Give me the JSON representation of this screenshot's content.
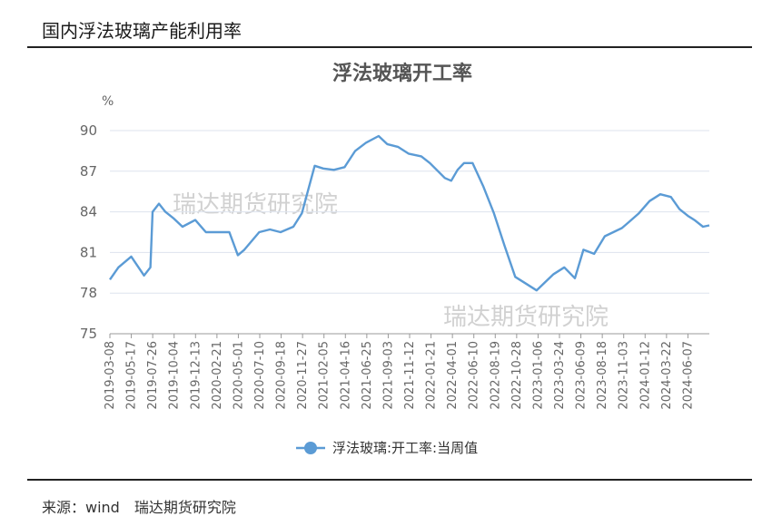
{
  "page": {
    "title": "国内浮法玻璃产能利用率",
    "source_label": "来源：wind",
    "source_org": "瑞达期货研究院"
  },
  "colors": {
    "line": "#5b9bd5",
    "grid": "#dde3ee",
    "axis_text": "#666666",
    "title": "#555555",
    "watermark": "#c9c9c9"
  },
  "watermarks": [
    "瑞达期货研究院",
    "瑞达期货研究院"
  ],
  "chart_data": {
    "type": "line",
    "title": "浮法玻璃开工率",
    "ylabel": "%",
    "ylim": [
      75,
      90
    ],
    "yticks": [
      75,
      78,
      81,
      84,
      87,
      90
    ],
    "grid": true,
    "legend": "bottom",
    "series": [
      {
        "name": "浮法玻璃:开工率:当周值",
        "x": [
          "2019-03-08",
          "2019-04-05",
          "2019-05-17",
          "2019-06-28",
          "2019-07-19",
          "2019-07-26",
          "2019-08-16",
          "2019-09-06",
          "2019-10-04",
          "2019-11-01",
          "2019-12-13",
          "2020-01-17",
          "2020-02-21",
          "2020-04-03",
          "2020-05-01",
          "2020-05-22",
          "2020-07-10",
          "2020-08-14",
          "2020-09-18",
          "2020-10-30",
          "2020-11-27",
          "2021-01-08",
          "2021-02-05",
          "2021-03-12",
          "2021-04-16",
          "2021-05-21",
          "2021-06-25",
          "2021-08-06",
          "2021-09-03",
          "2021-10-08",
          "2021-11-12",
          "2021-12-24",
          "2022-01-21",
          "2022-03-11",
          "2022-04-01",
          "2022-04-22",
          "2022-05-13",
          "2022-06-10",
          "2022-07-15",
          "2022-08-19",
          "2022-09-23",
          "2022-10-28",
          "2022-12-02",
          "2023-01-06",
          "2023-02-03",
          "2023-03-03",
          "2023-04-07",
          "2023-05-12",
          "2023-06-09",
          "2023-07-14",
          "2023-08-18",
          "2023-09-15",
          "2023-10-13",
          "2023-11-03",
          "2023-12-08",
          "2024-01-12",
          "2024-02-16",
          "2024-03-22",
          "2024-04-19",
          "2024-05-17",
          "2024-06-07",
          "2024-07-05",
          "2024-07-26"
        ],
        "values": [
          79.0,
          79.9,
          80.7,
          79.3,
          79.9,
          84.0,
          84.6,
          84.0,
          83.5,
          82.9,
          83.4,
          82.5,
          82.5,
          82.5,
          80.8,
          81.2,
          82.5,
          82.7,
          82.5,
          82.9,
          83.9,
          87.4,
          87.2,
          87.1,
          87.3,
          88.5,
          89.1,
          89.6,
          89.0,
          88.8,
          88.3,
          88.1,
          87.6,
          86.5,
          86.3,
          87.1,
          87.6,
          87.6,
          85.9,
          83.9,
          81.5,
          79.2,
          78.7,
          78.2,
          78.8,
          79.4,
          79.9,
          79.1,
          81.2,
          80.9,
          82.2,
          82.5,
          82.8,
          83.2,
          83.9,
          84.8,
          85.3,
          85.1,
          84.2,
          83.7,
          83.4,
          82.9,
          83.0
        ]
      }
    ],
    "xtick_labels": [
      "2019-03-08",
      "2019-05-17",
      "2019-07-26",
      "2019-10-04",
      "2019-12-13",
      "2020-02-21",
      "2020-05-01",
      "2020-07-10",
      "2020-09-18",
      "2020-11-27",
      "2021-02-05",
      "2021-04-16",
      "2021-06-25",
      "2021-09-03",
      "2021-11-12",
      "2022-01-21",
      "2022-04-01",
      "2022-06-10",
      "2022-08-19",
      "2022-10-28",
      "2023-01-06",
      "2023-03-24",
      "2023-06-09",
      "2023-08-18",
      "2023-11-03",
      "2024-01-12",
      "2024-03-22",
      "2024-06-07"
    ]
  }
}
